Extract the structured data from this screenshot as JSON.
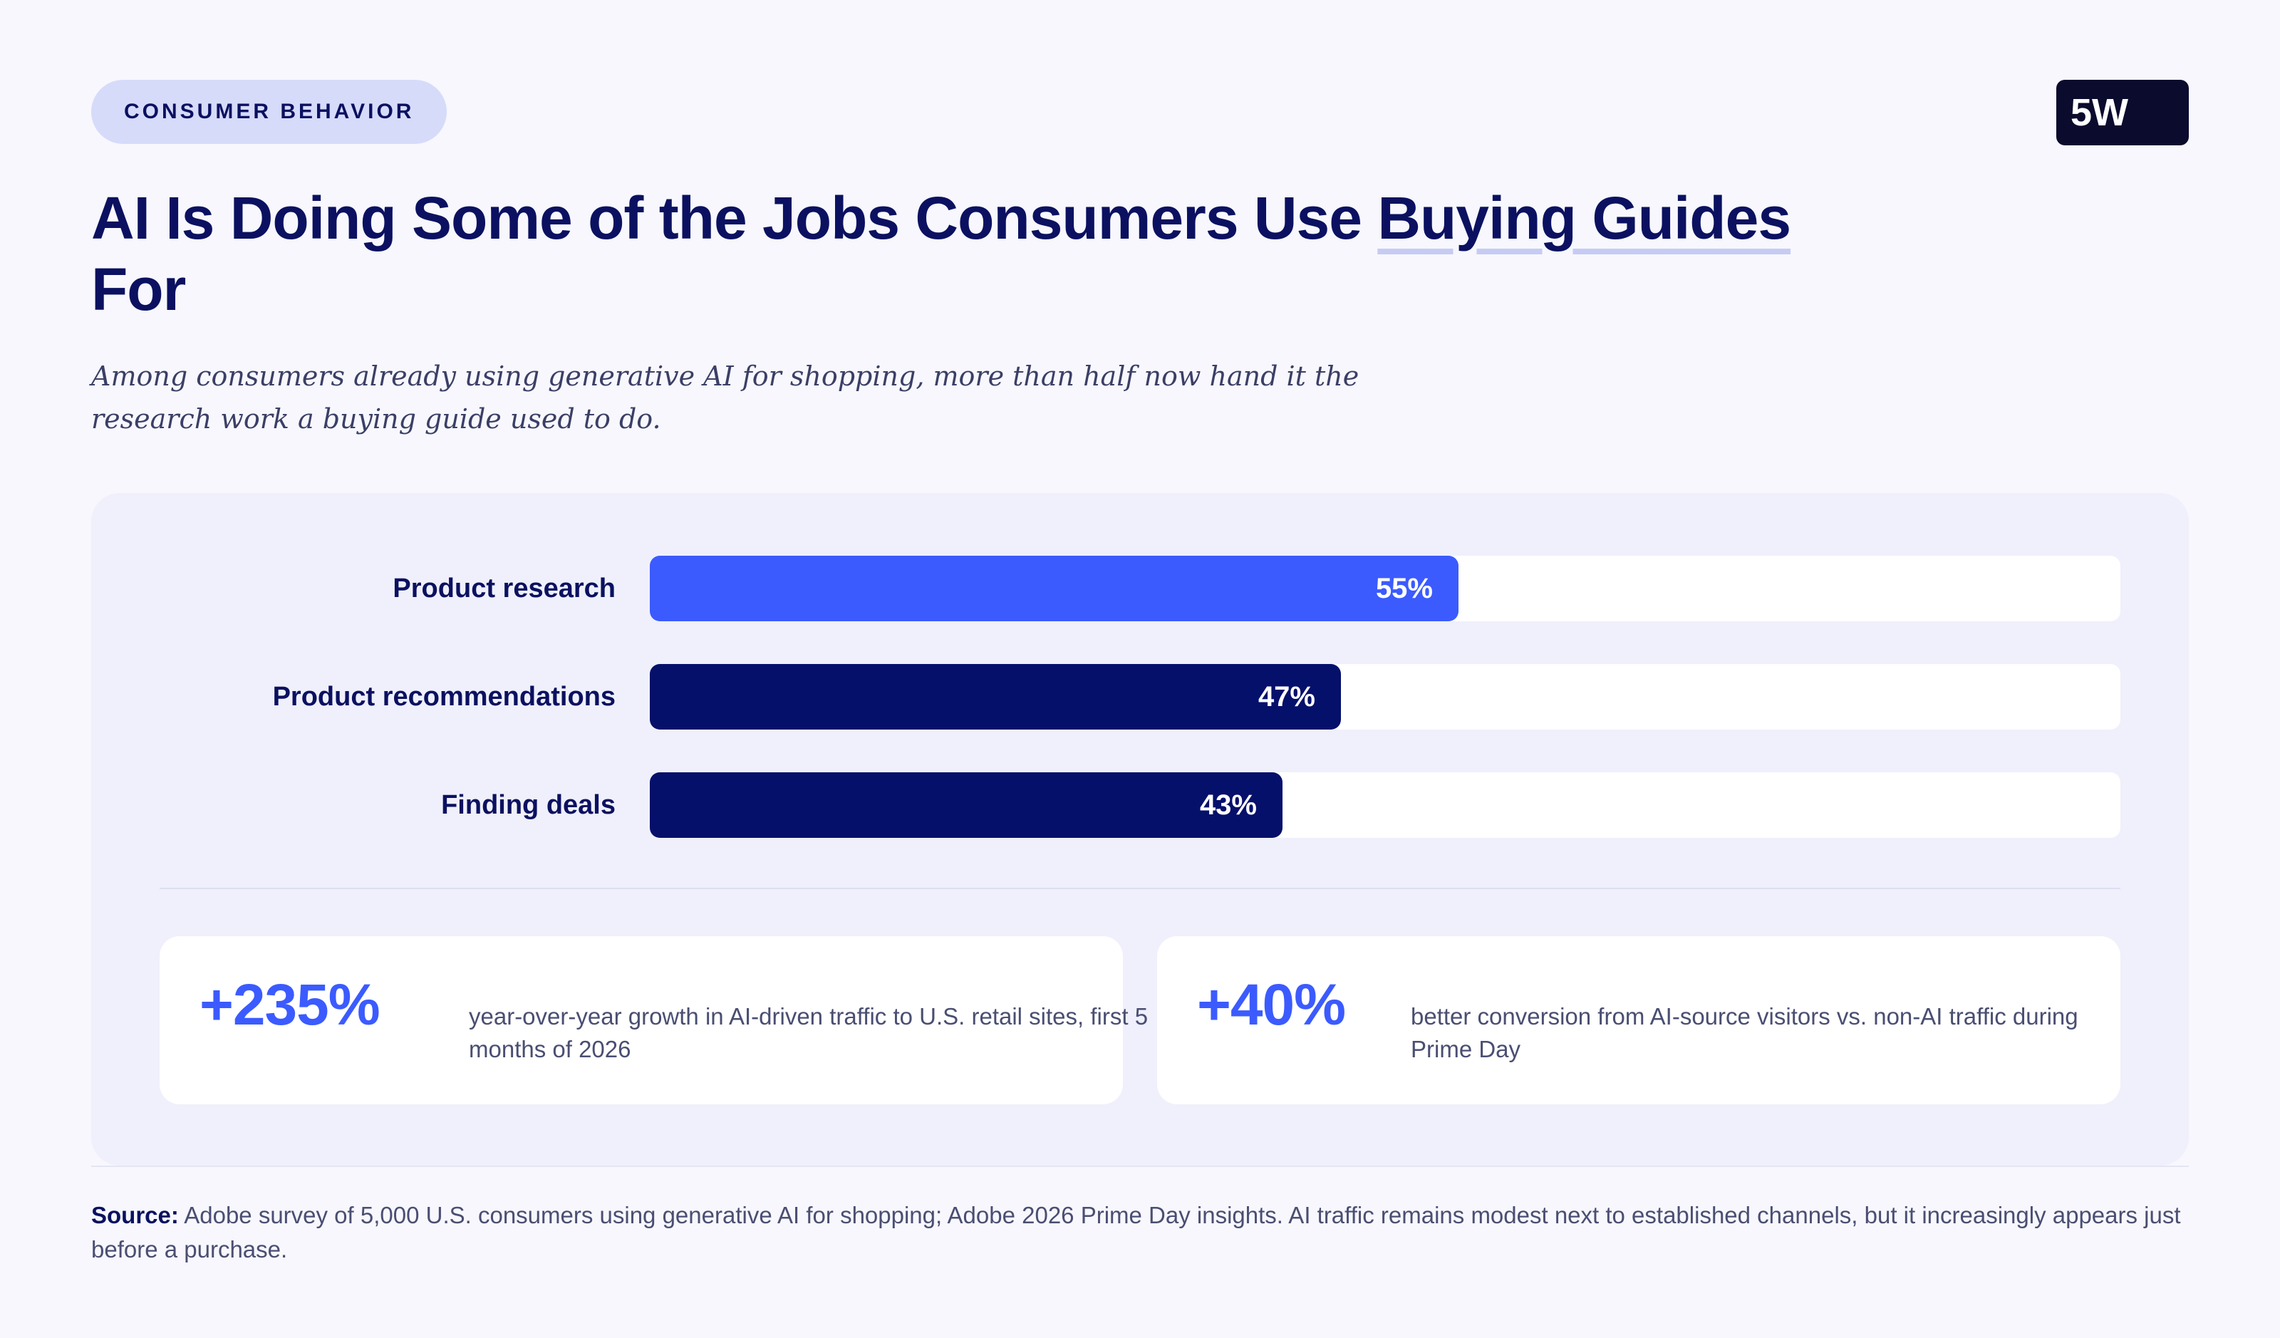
{
  "eyebrow": "CONSUMER BEHAVIOR",
  "logo": "5W",
  "title": {
    "part1": "AI Is Doing Some of the Jobs Consumers Use ",
    "highlight": "Buying Guides",
    "part2": " For"
  },
  "subtitle": "Among consumers already using generative AI for shopping, more than half now hand it the research work a buying guide used to do.",
  "chart_data": {
    "type": "bar",
    "orientation": "horizontal",
    "categories": [
      "Product research",
      "Product recommendations",
      "Finding deals"
    ],
    "values": [
      55,
      47,
      43
    ],
    "value_labels": [
      "55%",
      "47%",
      "43%"
    ],
    "unit": "%",
    "xlim": [
      0,
      100
    ],
    "colors": [
      "#3b5bff",
      "#05106b",
      "#05106b"
    ],
    "grid": false,
    "legend": false
  },
  "stats": [
    {
      "value": "+235%",
      "text": "year-over-year growth in AI-driven traffic to U.S. retail sites, first 5 months of 2026"
    },
    {
      "value": "+40%",
      "text": "better conversion from AI-source visitors vs. non-AI traffic during Prime Day"
    }
  ],
  "source": {
    "label": "Source:",
    "text": " Adobe survey of 5,000 U.S. consumers using generative AI for shopping; Adobe 2026 Prime Day insights. AI traffic remains modest next to established channels, but it increasingly appears just before a purchase."
  },
  "colors": {
    "accent": "#3b5bff",
    "navy": "#05106b",
    "text": "#0b1160",
    "panel": "#eff0fb"
  }
}
